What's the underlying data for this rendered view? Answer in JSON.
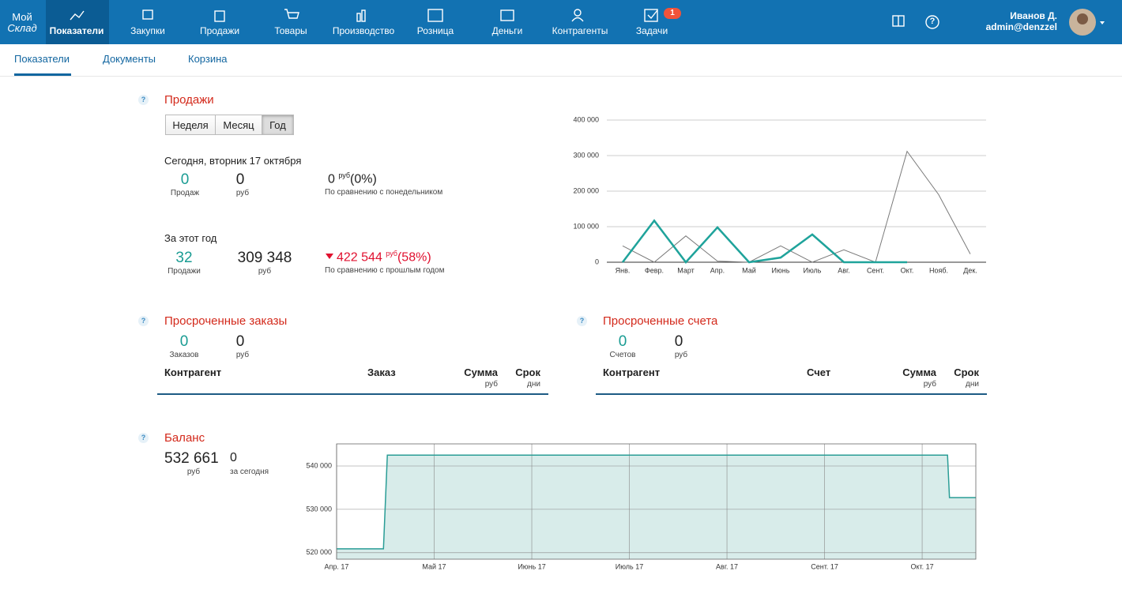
{
  "nav": {
    "logo": [
      "Мой",
      "Склад"
    ],
    "items": [
      "Показатели",
      "Закупки",
      "Продажи",
      "Товары",
      "Производство",
      "Розница",
      "Деньги",
      "Контрагенты",
      "Задачи"
    ],
    "tasks_badge": "1",
    "help": "?",
    "user_name": "Иванов Д.",
    "user_login": "admin@denzzel"
  },
  "tabs": [
    "Показатели",
    "Документы",
    "Корзина"
  ],
  "sales": {
    "help": "?",
    "title": "Продажи",
    "periods": [
      "Неделя",
      "Месяц",
      "Год"
    ],
    "today": {
      "label": "Сегодня, вторник 17 октября",
      "count": "0",
      "count_label": "Продаж",
      "sum": "0",
      "sum_label": "руб",
      "diff": "0",
      "diff_unit": "руб",
      "diff_pct": "(0%)",
      "diff_note": "По сравнению с понедельником"
    },
    "year": {
      "label": "За этот год",
      "count": "32",
      "count_label": "Продажи",
      "sum": "309 348",
      "sum_label": "руб",
      "diff": "422 544",
      "diff_unit": "руб",
      "diff_pct": "(58%)",
      "diff_note": "По сравнению с прошлым годом"
    }
  },
  "overdue_orders": {
    "help": "?",
    "title": "Просроченные заказы",
    "count": "0",
    "count_label": "Заказов",
    "sum": "0",
    "sum_label": "руб",
    "columns": [
      "Контрагент",
      "Заказ",
      "Сумма",
      "Срок"
    ],
    "column_units": [
      "руб",
      "дни"
    ]
  },
  "overdue_invoices": {
    "help": "?",
    "title": "Просроченные счета",
    "count": "0",
    "count_label": "Счетов",
    "sum": "0",
    "sum_label": "руб",
    "columns": [
      "Контрагент",
      "Счет",
      "Сумма",
      "Срок"
    ],
    "column_units": [
      "руб",
      "дни"
    ]
  },
  "balance": {
    "help": "?",
    "title": "Баланс",
    "sum": "532 661",
    "sum_label": "руб",
    "today": "0",
    "today_label": "за сегодня"
  },
  "chart_data": [
    {
      "type": "line",
      "categories": [
        "Янв.",
        "Февр.",
        "Март",
        "Апр.",
        "Май",
        "Июнь",
        "Июль",
        "Авг.",
        "Сент.",
        "Окт.",
        "Нояб.",
        "Дек."
      ],
      "series": [
        {
          "color": "#7a7a7a",
          "values": [
            46000,
            0,
            74000,
            3000,
            0,
            46000,
            0,
            35000,
            0,
            312000,
            190000,
            23000
          ]
        },
        {
          "color": "#1fa39b",
          "values": [
            0,
            117000,
            0,
            98000,
            0,
            13000,
            78000,
            0,
            0,
            0,
            null,
            null
          ]
        }
      ],
      "ylim": [
        0,
        400000
      ],
      "yticks": [
        0,
        {
          "value": 100000,
          "label": "100 000"
        },
        {
          "value": 200000,
          "label": "200 000"
        },
        {
          "value": 300000,
          "label": "300 000"
        },
        {
          "value": 400000,
          "label": "400 000"
        }
      ],
      "grid": true
    },
    {
      "type": "area",
      "x": [
        0,
        0.48,
        0.52,
        6.26,
        6.28,
        6.55
      ],
      "values": [
        520900,
        520900,
        542500,
        542500,
        532700,
        532700
      ],
      "color": "#2a9d96",
      "fill": "#d8ecea",
      "xlim": [
        0,
        6.55
      ],
      "xticks": [
        {
          "value": 0,
          "label": "Апр. 17"
        },
        {
          "value": 1,
          "label": "Май 17"
        },
        {
          "value": 2,
          "label": "Июнь 17"
        },
        {
          "value": 3,
          "label": "Июль 17"
        },
        {
          "value": 4,
          "label": "Авг. 17"
        },
        {
          "value": 5,
          "label": "Сент. 17"
        },
        {
          "value": 6,
          "label": "Окт. 17"
        }
      ],
      "ylim": [
        518500,
        545100
      ],
      "yticks": [
        {
          "value": 520000,
          "label": "520 000"
        },
        {
          "value": 530000,
          "label": "530 000"
        },
        {
          "value": 540000,
          "label": "540 000"
        }
      ],
      "grid": true
    }
  ]
}
